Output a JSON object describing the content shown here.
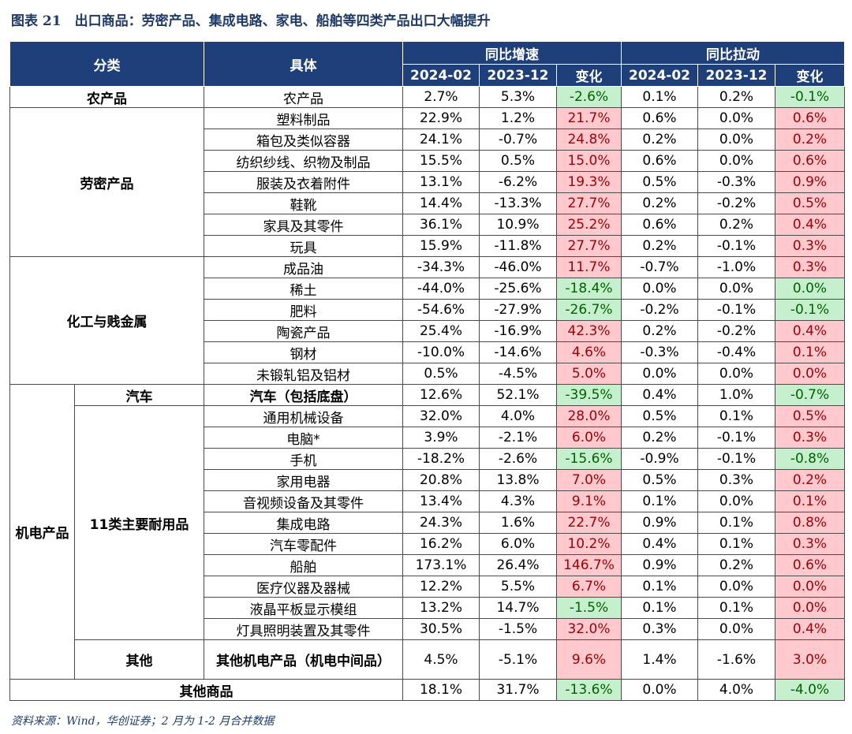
{
  "title": "图表 21　出口商品：劳密产品、集成电路、家电、船舶等四类产品出口大幅提升",
  "source": "资料来源：Wind，华创证券；2 月为 1-2 月合并数据",
  "header": {
    "category": "分类",
    "item": "具体",
    "growth": "同比增速",
    "pull": "同比拉动",
    "d1": "2024-02",
    "d2": "2023-12",
    "change": "变化"
  },
  "colors": {
    "header_bg": "#1f3f7a",
    "pos_bg": "#ffc9ce",
    "pos_fg": "#9c0006",
    "neg_bg": "#c6efce",
    "neg_fg": "#006100"
  },
  "groups": {
    "agri": "农产品",
    "labor": "劳密产品",
    "chem": "化工与贱金属",
    "mech": "机电产品",
    "auto": "汽车",
    "durable": "11类主要耐用品",
    "other_mech": "其他",
    "other_goods": "其他商品"
  },
  "rows": [
    {
      "name": "农产品",
      "g1": "2.7%",
      "g2": "5.3%",
      "gc": "-2.6%",
      "p1": "0.1%",
      "p2": "0.2%",
      "pc": "-0.1%"
    },
    {
      "name": "塑料制品",
      "g1": "22.9%",
      "g2": "1.2%",
      "gc": "21.7%",
      "p1": "0.6%",
      "p2": "0.0%",
      "pc": "0.6%"
    },
    {
      "name": "箱包及类似容器",
      "g1": "24.1%",
      "g2": "-0.7%",
      "gc": "24.8%",
      "p1": "0.2%",
      "p2": "0.0%",
      "pc": "0.2%"
    },
    {
      "name": "纺织纱线、织物及制品",
      "g1": "15.5%",
      "g2": "0.5%",
      "gc": "15.0%",
      "p1": "0.6%",
      "p2": "0.0%",
      "pc": "0.6%"
    },
    {
      "name": "服装及衣着附件",
      "g1": "13.1%",
      "g2": "-6.2%",
      "gc": "19.3%",
      "p1": "0.5%",
      "p2": "-0.3%",
      "pc": "0.9%"
    },
    {
      "name": "鞋靴",
      "g1": "14.4%",
      "g2": "-13.3%",
      "gc": "27.7%",
      "p1": "0.2%",
      "p2": "-0.2%",
      "pc": "0.5%"
    },
    {
      "name": "家具及其零件",
      "g1": "36.1%",
      "g2": "10.9%",
      "gc": "25.2%",
      "p1": "0.6%",
      "p2": "0.2%",
      "pc": "0.4%"
    },
    {
      "name": "玩具",
      "g1": "15.9%",
      "g2": "-11.8%",
      "gc": "27.7%",
      "p1": "0.2%",
      "p2": "-0.1%",
      "pc": "0.3%"
    },
    {
      "name": "成品油",
      "g1": "-34.3%",
      "g2": "-46.0%",
      "gc": "11.7%",
      "p1": "-0.7%",
      "p2": "-1.0%",
      "pc": "0.3%"
    },
    {
      "name": "稀土",
      "g1": "-44.0%",
      "g2": "-25.6%",
      "gc": "-18.4%",
      "p1": "0.0%",
      "p2": "0.0%",
      "pc": "0.0%"
    },
    {
      "name": "肥料",
      "g1": "-54.6%",
      "g2": "-27.9%",
      "gc": "-26.7%",
      "p1": "-0.2%",
      "p2": "-0.1%",
      "pc": "-0.1%"
    },
    {
      "name": "陶瓷产品",
      "g1": "25.4%",
      "g2": "-16.9%",
      "gc": "42.3%",
      "p1": "0.2%",
      "p2": "-0.2%",
      "pc": "0.4%"
    },
    {
      "name": "钢材",
      "g1": "-10.0%",
      "g2": "-14.6%",
      "gc": "4.6%",
      "p1": "-0.3%",
      "p2": "-0.4%",
      "pc": "0.1%"
    },
    {
      "name": "未锻轧铝及铝材",
      "g1": "0.5%",
      "g2": "-4.5%",
      "gc": "5.0%",
      "p1": "0.0%",
      "p2": "0.0%",
      "pc": "0.0%"
    },
    {
      "name": "汽车（包括底盘）",
      "g1": "12.6%",
      "g2": "52.1%",
      "gc": "-39.5%",
      "p1": "0.4%",
      "p2": "1.0%",
      "pc": "-0.7%"
    },
    {
      "name": "通用机械设备",
      "g1": "32.0%",
      "g2": "4.0%",
      "gc": "28.0%",
      "p1": "0.5%",
      "p2": "0.1%",
      "pc": "0.5%"
    },
    {
      "name": "电脑*",
      "g1": "3.9%",
      "g2": "-2.1%",
      "gc": "6.0%",
      "p1": "0.2%",
      "p2": "-0.1%",
      "pc": "0.3%"
    },
    {
      "name": "手机",
      "g1": "-18.2%",
      "g2": "-2.6%",
      "gc": "-15.6%",
      "p1": "-0.9%",
      "p2": "-0.1%",
      "pc": "-0.8%"
    },
    {
      "name": "家用电器",
      "g1": "20.8%",
      "g2": "13.8%",
      "gc": "7.0%",
      "p1": "0.5%",
      "p2": "0.3%",
      "pc": "0.2%"
    },
    {
      "name": "音视频设备及其零件",
      "g1": "13.4%",
      "g2": "4.3%",
      "gc": "9.1%",
      "p1": "0.1%",
      "p2": "0.0%",
      "pc": "0.1%"
    },
    {
      "name": "集成电路",
      "g1": "24.3%",
      "g2": "1.6%",
      "gc": "22.7%",
      "p1": "0.9%",
      "p2": "0.1%",
      "pc": "0.8%"
    },
    {
      "name": "汽车零配件",
      "g1": "16.2%",
      "g2": "6.0%",
      "gc": "10.2%",
      "p1": "0.4%",
      "p2": "0.1%",
      "pc": "0.3%"
    },
    {
      "name": "船舶",
      "g1": "173.1%",
      "g2": "26.4%",
      "gc": "146.7%",
      "p1": "0.9%",
      "p2": "0.2%",
      "pc": "0.6%"
    },
    {
      "name": "医疗仪器及器械",
      "g1": "12.2%",
      "g2": "5.5%",
      "gc": "6.7%",
      "p1": "0.1%",
      "p2": "0.0%",
      "pc": "0.0%"
    },
    {
      "name": "液晶平板显示模组",
      "g1": "13.2%",
      "g2": "14.7%",
      "gc": "-1.5%",
      "p1": "0.1%",
      "p2": "0.1%",
      "pc": "0.0%"
    },
    {
      "name": "灯具照明装置及其零件",
      "g1": "30.5%",
      "g2": "-1.5%",
      "gc": "32.0%",
      "p1": "0.3%",
      "p2": "0.0%",
      "pc": "0.4%"
    },
    {
      "name": "其他机电产品（机电中间品）",
      "g1": "4.5%",
      "g2": "-5.1%",
      "gc": "9.6%",
      "p1": "1.4%",
      "p2": "-1.6%",
      "pc": "3.0%"
    },
    {
      "name": "",
      "g1": "18.1%",
      "g2": "31.7%",
      "gc": "-13.6%",
      "p1": "0.0%",
      "p2": "4.0%",
      "pc": "-4.0%"
    }
  ],
  "highlight": {
    "gc": [
      "neg",
      "pos",
      "pos",
      "pos",
      "pos",
      "pos",
      "pos",
      "pos",
      "pos",
      "neg",
      "neg",
      "pos",
      "pos",
      "pos",
      "neg",
      "pos",
      "pos",
      "neg",
      "pos",
      "pos",
      "pos",
      "pos",
      "pos",
      "pos",
      "neg",
      "pos",
      "pos",
      "neg"
    ],
    "pc": [
      "neg",
      "pos",
      "pos",
      "pos",
      "pos",
      "pos",
      "pos",
      "pos",
      "pos",
      "neg",
      "neg",
      "pos",
      "pos",
      "pos",
      "neg",
      "pos",
      "pos",
      "neg",
      "pos",
      "pos",
      "pos",
      "pos",
      "pos",
      "pos",
      "pos",
      "pos",
      "pos",
      "neg"
    ]
  }
}
